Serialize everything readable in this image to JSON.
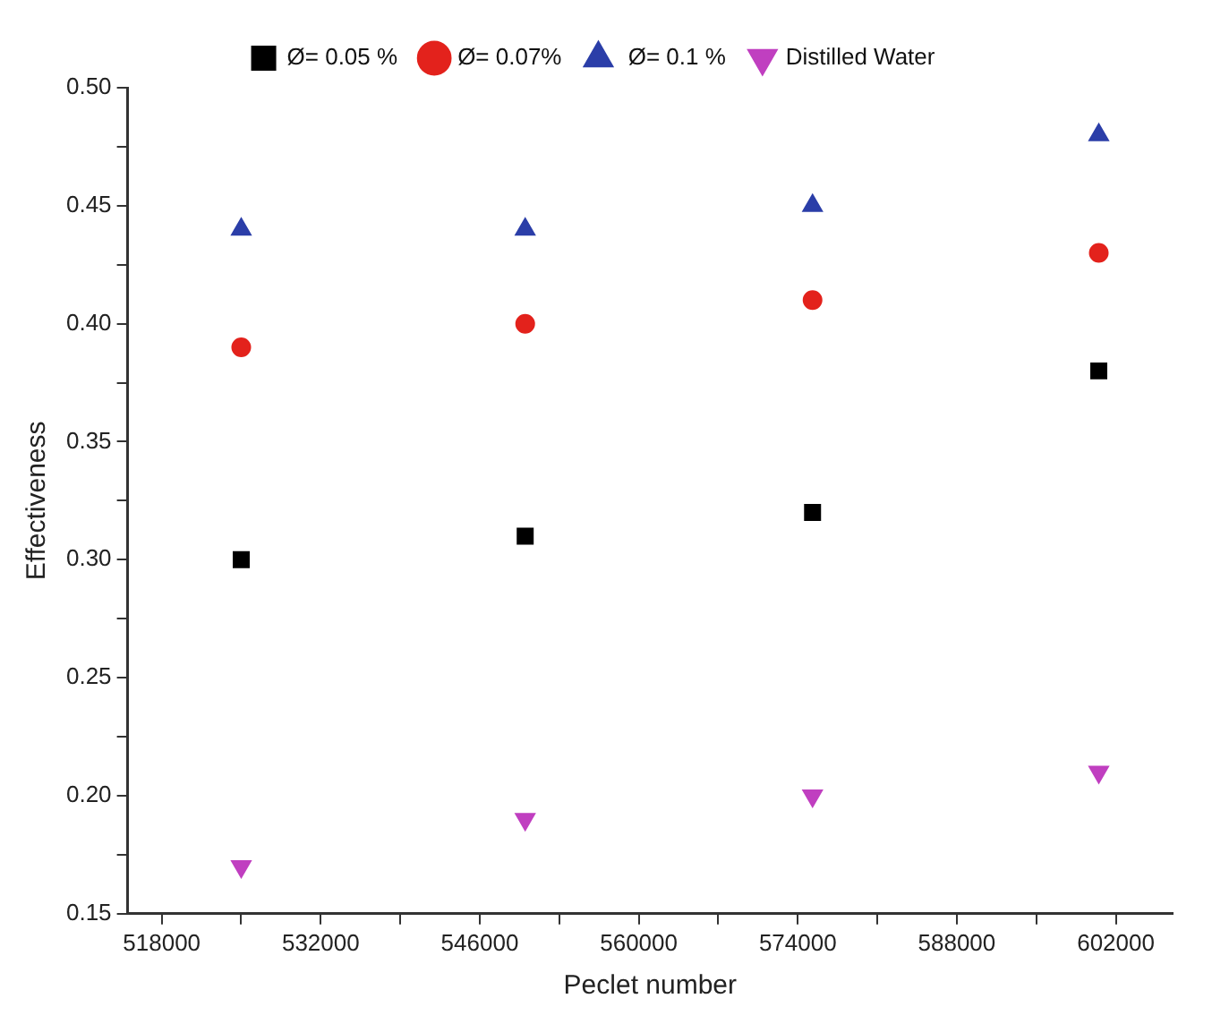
{
  "chart_data": {
    "type": "scatter",
    "xlabel": "Peclet number",
    "ylabel": "Effectiveness",
    "x": [
      525000,
      550000,
      575300,
      600500
    ],
    "series": [
      {
        "name": "Ø= 0.05 %",
        "color": "#000000",
        "marker": "square",
        "values": [
          0.3,
          0.31,
          0.32,
          0.38
        ]
      },
      {
        "name": "Ø= 0.07%",
        "color": "#e3221c",
        "marker": "circle",
        "values": [
          0.39,
          0.4,
          0.41,
          0.43
        ]
      },
      {
        "name": " Ø= 0.1 %",
        "color": "#2b3ea8",
        "marker": "triangle",
        "values": [
          0.44,
          0.44,
          0.45,
          0.48
        ]
      },
      {
        "name": "Distilled Water",
        "color": "#c03fc0",
        "marker": "triangle-down",
        "values": [
          0.17,
          0.19,
          0.2,
          0.21
        ]
      }
    ],
    "xlim": [
      515000,
      607000
    ],
    "xticks": [
      518000,
      {
        "value": 525000,
        "label": null
      },
      532000,
      {
        "value": 539000,
        "label": null
      },
      546000,
      {
        "value": 553000,
        "label": null
      },
      560000,
      {
        "value": 567000,
        "label": null
      },
      574000,
      {
        "value": 581000,
        "label": null
      },
      588000,
      {
        "value": 595000,
        "label": null
      },
      602000
    ],
    "ylim": [
      0.15,
      0.5
    ],
    "yticks": [
      {
        "value": 0.15,
        "label": "0.15"
      },
      {
        "value": 0.175,
        "label": null
      },
      {
        "value": 0.2,
        "label": "0.20"
      },
      {
        "value": 0.225,
        "label": null
      },
      {
        "value": 0.25,
        "label": "0.25"
      },
      {
        "value": 0.275,
        "label": null
      },
      {
        "value": 0.3,
        "label": "0.30"
      },
      {
        "value": 0.325,
        "label": null
      },
      {
        "value": 0.35,
        "label": "0.35"
      },
      {
        "value": 0.375,
        "label": null
      },
      {
        "value": 0.4,
        "label": "0.40"
      },
      {
        "value": 0.425,
        "label": null
      },
      {
        "value": 0.45,
        "label": "0.45"
      },
      {
        "value": 0.475,
        "label": null
      },
      {
        "value": 0.5,
        "label": "0.50"
      }
    ],
    "grid": false,
    "legend": "top"
  }
}
